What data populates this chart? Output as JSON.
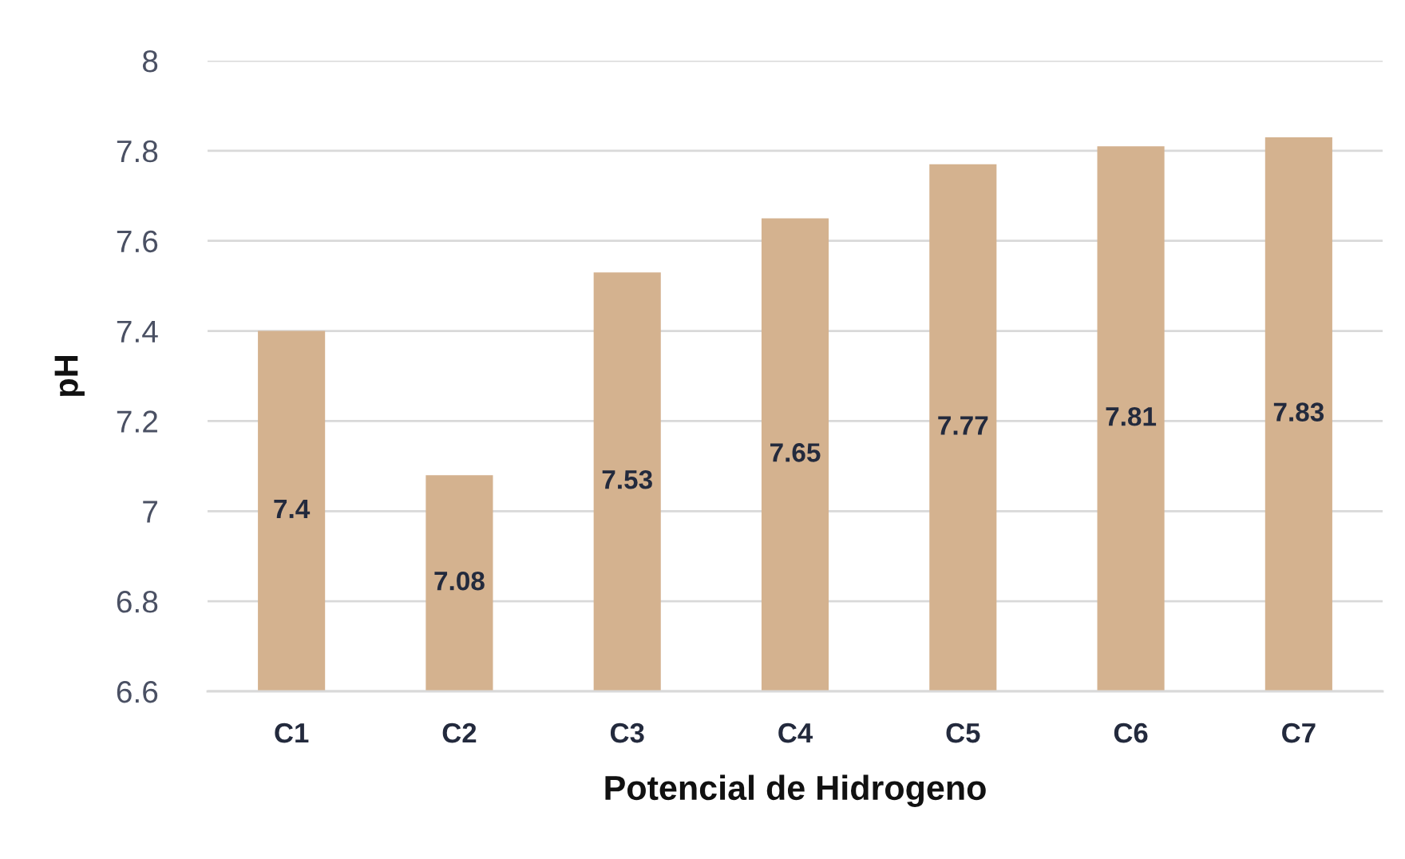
{
  "chart_data": {
    "type": "bar",
    "xlabel": "Potencial de Hidrogeno",
    "ylabel": "pH",
    "categories": [
      "C1",
      "C2",
      "C3",
      "C4",
      "C5",
      "C6",
      "C7"
    ],
    "values": [
      7.4,
      7.08,
      7.53,
      7.65,
      7.77,
      7.81,
      7.83
    ],
    "color": "#d4b28f",
    "ylim": [
      6.6,
      8
    ],
    "yticks": [
      6.6,
      6.8,
      7,
      7.2,
      7.4,
      7.6,
      7.8,
      8
    ],
    "grid": "y",
    "data_labels": true
  }
}
